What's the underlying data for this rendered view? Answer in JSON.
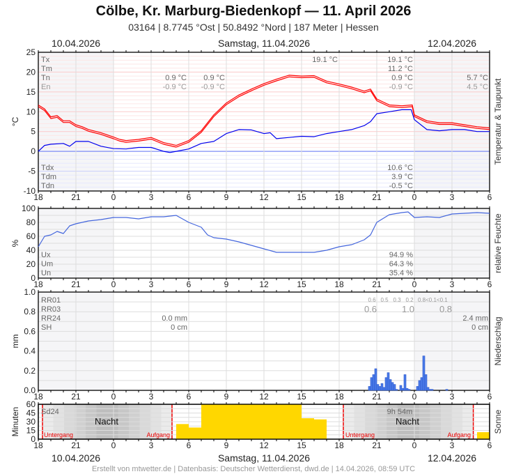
{
  "header": {
    "title": "Cölbe, Kr. Marburg-Biedenkopf  —  11. April 2026",
    "subtitle": "03164  |  8.7745 °Ost  |  50.8492 °Nord  |  187 Meter  |  Hessen"
  },
  "dates": {
    "left": "10.04.2026",
    "center": "Samstag, 11.04.2026",
    "right": "12.04.2026"
  },
  "footer": "Erstellt von mtwetter.de | Datenbasis: Deutscher Wetterdienst, dwd.de | 14.04.2026, 08:59 UTC",
  "x_tick_labels": [
    "18",
    "21",
    "0",
    "3",
    "6",
    "9",
    "12",
    "15",
    "18",
    "21",
    "0",
    "3",
    "6"
  ],
  "colors": {
    "temperature": "#ff0000",
    "dewpoint": "#0000ee",
    "humidity": "#4466dd",
    "precipitation": "#4a7be8",
    "sunshine": "#ffd700",
    "sun_event": "#ee0000"
  },
  "chart_data": [
    {
      "type": "line",
      "ylabel": "°C",
      "right_label": "Temperatur & Taupunkt",
      "ylim": [
        -10,
        25
      ],
      "y_ticks": [
        "25",
        "20",
        "15",
        "10",
        "5",
        "0",
        "-5",
        "-10"
      ],
      "xlim": [
        "2026-04-10T18:00",
        "2026-04-12T06:00"
      ],
      "grid": true,
      "series": [
        {
          "key": "temperature",
          "points": [
            [
              "2026-04-10T18:00",
              11.5
            ],
            [
              "2026-04-10T18:30",
              10.5
            ],
            [
              "2026-04-10T19:00",
              8.5
            ],
            [
              "2026-04-10T19:30",
              8.8
            ],
            [
              "2026-04-10T20:00",
              7.5
            ],
            [
              "2026-04-10T20:30",
              7.5
            ],
            [
              "2026-04-10T21:00",
              6.5
            ],
            [
              "2026-04-10T21:30",
              6
            ],
            [
              "2026-04-10T22:00",
              5.3
            ],
            [
              "2026-04-10T23:00",
              4.5
            ],
            [
              "2026-04-11T00:00",
              3.4
            ],
            [
              "2026-04-11T00:30",
              2.8
            ],
            [
              "2026-04-11T01:00",
              2.5
            ],
            [
              "2026-04-11T02:00",
              2.8
            ],
            [
              "2026-04-11T03:00",
              3.3
            ],
            [
              "2026-04-11T04:00",
              2
            ],
            [
              "2026-04-11T05:00",
              1.3
            ],
            [
              "2026-04-11T06:00",
              2.5
            ],
            [
              "2026-04-11T07:00",
              5
            ],
            [
              "2026-04-11T08:00",
              9
            ],
            [
              "2026-04-11T09:00",
              12
            ],
            [
              "2026-04-11T10:00",
              14
            ],
            [
              "2026-04-11T11:00",
              15.5
            ],
            [
              "2026-04-11T12:00",
              16.9
            ],
            [
              "2026-04-11T13:00",
              18
            ],
            [
              "2026-04-11T14:00",
              19
            ],
            [
              "2026-04-11T15:00",
              18.8
            ],
            [
              "2026-04-11T16:00",
              18.9
            ],
            [
              "2026-04-11T17:00",
              17.5
            ],
            [
              "2026-04-11T18:00",
              16.8
            ],
            [
              "2026-04-11T19:00",
              16
            ],
            [
              "2026-04-11T20:00",
              15
            ],
            [
              "2026-04-11T20:30",
              15.5
            ],
            [
              "2026-04-11T21:00",
              13
            ],
            [
              "2026-04-11T22:00",
              11.5
            ],
            [
              "2026-04-11T23:00",
              11.3
            ],
            [
              "2026-04-11T23:50",
              11.5
            ],
            [
              "2026-04-12T00:00",
              9
            ],
            [
              "2026-04-12T01:00",
              7.5
            ],
            [
              "2026-04-12T02:00",
              7
            ],
            [
              "2026-04-12T03:00",
              7
            ],
            [
              "2026-04-12T04:00",
              6.5
            ],
            [
              "2026-04-12T05:00",
              6
            ],
            [
              "2026-04-12T06:00",
              5.7
            ]
          ]
        },
        {
          "key": "dewpoint",
          "points": [
            [
              "2026-04-10T18:00",
              0
            ],
            [
              "2026-04-10T18:30",
              1.5
            ],
            [
              "2026-04-10T19:00",
              1.8
            ],
            [
              "2026-04-10T20:00",
              2
            ],
            [
              "2026-04-10T20:30",
              1.3
            ],
            [
              "2026-04-10T21:00",
              2.5
            ],
            [
              "2026-04-10T22:00",
              2.5
            ],
            [
              "2026-04-10T23:00",
              1.3
            ],
            [
              "2026-04-11T00:00",
              0.7
            ],
            [
              "2026-04-11T01:00",
              0.6
            ],
            [
              "2026-04-11T02:00",
              1
            ],
            [
              "2026-04-11T03:00",
              1
            ],
            [
              "2026-04-11T04:00",
              0
            ],
            [
              "2026-04-11T04:30",
              -0.3
            ],
            [
              "2026-04-11T05:00",
              0
            ],
            [
              "2026-04-11T06:00",
              0.6
            ],
            [
              "2026-04-11T07:00",
              2
            ],
            [
              "2026-04-11T08:00",
              2.5
            ],
            [
              "2026-04-11T09:00",
              4.5
            ],
            [
              "2026-04-11T10:00",
              5.5
            ],
            [
              "2026-04-11T11:00",
              5.4
            ],
            [
              "2026-04-11T12:00",
              4.5
            ],
            [
              "2026-04-11T12:30",
              4.7
            ],
            [
              "2026-04-11T13:00",
              3.2
            ],
            [
              "2026-04-11T14:00",
              3.5
            ],
            [
              "2026-04-11T15:00",
              3.8
            ],
            [
              "2026-04-11T16:00",
              3.7
            ],
            [
              "2026-04-11T17:00",
              4.5
            ],
            [
              "2026-04-11T18:00",
              5
            ],
            [
              "2026-04-11T19:00",
              5.5
            ],
            [
              "2026-04-11T20:00",
              6.5
            ],
            [
              "2026-04-11T20:30",
              7.5
            ],
            [
              "2026-04-11T21:00",
              9.5
            ],
            [
              "2026-04-11T22:00",
              10
            ],
            [
              "2026-04-11T23:00",
              10.5
            ],
            [
              "2026-04-11T23:45",
              10.5
            ],
            [
              "2026-04-12T00:00",
              8
            ],
            [
              "2026-04-12T01:00",
              5.5
            ],
            [
              "2026-04-12T02:00",
              5.2
            ],
            [
              "2026-04-12T03:00",
              5.5
            ],
            [
              "2026-04-12T04:00",
              5.5
            ],
            [
              "2026-04-12T05:00",
              5
            ],
            [
              "2026-04-12T06:00",
              5
            ]
          ]
        }
      ],
      "stats_labels_top": [
        "Tx",
        "Tm",
        "Tn",
        "En"
      ],
      "stats_labels_bottom": [
        "Tdx",
        "Tdm",
        "Tdn"
      ],
      "stats": {
        "day0_tn": "0.9 °C",
        "day0_en": "-0.9 °C",
        "day1_tn": "0.9 °C",
        "day1_en": "-0.9 °C",
        "tx_marker": "19.1 °C",
        "day_tx": "19.1 °C",
        "day_tm": "11.2 °C",
        "day_tn": "0.9 °C",
        "day_en": "-0.9 °C",
        "next_tn": "5.7 °C",
        "next_en": "4.5 °C",
        "day_tdx": "10.6 °C",
        "day_tdm": "3.9 °C",
        "day_tdn": "-0.5 °C"
      }
    },
    {
      "type": "line",
      "ylabel": "%",
      "right_label": "relative Feuchte",
      "ylim": [
        0,
        100
      ],
      "y_ticks": [
        "100",
        "80",
        "60",
        "40",
        "20",
        "0"
      ],
      "series": [
        {
          "key": "humidity",
          "points": [
            [
              "2026-04-10T18:00",
              45
            ],
            [
              "2026-04-10T18:30",
              60
            ],
            [
              "2026-04-10T19:00",
              62
            ],
            [
              "2026-04-10T19:30",
              67
            ],
            [
              "2026-04-10T20:00",
              64
            ],
            [
              "2026-04-10T20:30",
              75
            ],
            [
              "2026-04-10T21:00",
              78
            ],
            [
              "2026-04-10T22:00",
              82
            ],
            [
              "2026-04-10T23:00",
              84
            ],
            [
              "2026-04-11T00:00",
              87
            ],
            [
              "2026-04-11T01:00",
              87
            ],
            [
              "2026-04-11T02:00",
              85
            ],
            [
              "2026-04-11T03:00",
              88
            ],
            [
              "2026-04-11T04:00",
              88
            ],
            [
              "2026-04-11T05:00",
              90
            ],
            [
              "2026-04-11T06:00",
              80
            ],
            [
              "2026-04-11T07:00",
              73
            ],
            [
              "2026-04-11T07:30",
              62
            ],
            [
              "2026-04-11T08:00",
              58
            ],
            [
              "2026-04-11T09:00",
              56
            ],
            [
              "2026-04-11T10:00",
              52
            ],
            [
              "2026-04-11T11:00",
              47
            ],
            [
              "2026-04-11T12:00",
              42
            ],
            [
              "2026-04-11T13:00",
              37
            ],
            [
              "2026-04-11T14:00",
              37
            ],
            [
              "2026-04-11T15:00",
              37
            ],
            [
              "2026-04-11T16:00",
              37
            ],
            [
              "2026-04-11T17:00",
              40
            ],
            [
              "2026-04-11T18:00",
              45
            ],
            [
              "2026-04-11T19:00",
              48
            ],
            [
              "2026-04-11T20:00",
              55
            ],
            [
              "2026-04-11T20:30",
              62
            ],
            [
              "2026-04-11T21:00",
              80
            ],
            [
              "2026-04-11T22:00",
              91
            ],
            [
              "2026-04-11T23:00",
              94
            ],
            [
              "2026-04-11T23:30",
              95
            ],
            [
              "2026-04-12T00:00",
              87
            ],
            [
              "2026-04-12T01:00",
              88
            ],
            [
              "2026-04-12T02:00",
              87
            ],
            [
              "2026-04-12T03:00",
              92
            ],
            [
              "2026-04-12T04:00",
              93
            ],
            [
              "2026-04-12T05:00",
              94
            ],
            [
              "2026-04-12T06:00",
              93
            ]
          ]
        }
      ],
      "stats_labels": [
        "Ux",
        "Um",
        "Un"
      ],
      "stats": {
        "ux": "94.9 %",
        "um": "64.3 %",
        "un": "35.4 %"
      }
    },
    {
      "type": "bar",
      "ylabel": "mm",
      "right_label": "Niederschlag",
      "ylim": [
        0,
        1.0
      ],
      "y_ticks": [
        "1.0",
        "0.8",
        "0.6",
        "0.4",
        "0.2",
        "0.0"
      ],
      "bar_minutes": 10,
      "values": [
        [
          "2026-04-11T20:20",
          0.04
        ],
        [
          "2026-04-11T20:30",
          0.13
        ],
        [
          "2026-04-11T20:40",
          0.16
        ],
        [
          "2026-04-11T20:50",
          0.22
        ],
        [
          "2026-04-11T21:00",
          0.06
        ],
        [
          "2026-04-11T21:10",
          0.04
        ],
        [
          "2026-04-11T21:20",
          0.07
        ],
        [
          "2026-04-11T21:30",
          0.03
        ],
        [
          "2026-04-11T21:40",
          0.13
        ],
        [
          "2026-04-11T21:50",
          0.18
        ],
        [
          "2026-04-11T22:00",
          0.11
        ],
        [
          "2026-04-11T22:10",
          0.08
        ],
        [
          "2026-04-11T22:20",
          0.06
        ],
        [
          "2026-04-11T22:30",
          0.01
        ],
        [
          "2026-04-11T22:50",
          0.05
        ],
        [
          "2026-04-11T23:00",
          0.02
        ],
        [
          "2026-04-11T23:10",
          0.16
        ],
        [
          "2026-04-11T23:20",
          0.02
        ],
        [
          "2026-04-11T23:30",
          0.01
        ],
        [
          "2026-04-12T00:10",
          0.04
        ],
        [
          "2026-04-12T00:20",
          0.1
        ],
        [
          "2026-04-12T00:30",
          0.13
        ],
        [
          "2026-04-12T00:40",
          0.35
        ],
        [
          "2026-04-12T00:50",
          0.16
        ],
        [
          "2026-04-12T01:00",
          0.03
        ],
        [
          "2026-04-12T01:10",
          0.01
        ],
        [
          "2026-04-12T01:20",
          0.01
        ],
        [
          "2026-04-12T02:30",
          0.01
        ]
      ],
      "stats_labels": [
        "RR01",
        "RR03",
        "RR24",
        "SH"
      ],
      "stats": {
        "day_rr24": "0.0 mm",
        "day_sh": "0 cm",
        "next_rr24": "2.4 mm",
        "next_sh": "0 cm"
      },
      "rr01": [
        "0.6",
        "0.5",
        "0.3",
        "0.2",
        "0.8<0.1<0.1"
      ],
      "rr03": [
        "0.6",
        "1.0",
        "0.8"
      ]
    },
    {
      "type": "bar",
      "ylabel": "Minuten",
      "right_label": "Sonne",
      "ylim": [
        0,
        60
      ],
      "y_ticks": [
        "60",
        "45",
        "30",
        "15",
        "0"
      ],
      "bar_minutes": 60,
      "values": [
        [
          "2026-04-11T05:00",
          26
        ],
        [
          "2026-04-11T06:00",
          20
        ],
        [
          "2026-04-11T07:00",
          60
        ],
        [
          "2026-04-11T08:00",
          60
        ],
        [
          "2026-04-11T09:00",
          60
        ],
        [
          "2026-04-11T10:00",
          60
        ],
        [
          "2026-04-11T11:00",
          60
        ],
        [
          "2026-04-11T12:00",
          60
        ],
        [
          "2026-04-11T13:00",
          60
        ],
        [
          "2026-04-11T14:00",
          60
        ],
        [
          "2026-04-11T15:00",
          36
        ],
        [
          "2026-04-11T16:00",
          34
        ],
        [
          "2026-04-12T05:00",
          12
        ]
      ],
      "sd24_label": "Sd24",
      "sd24_value": "9h 54m",
      "night_label": "Nacht",
      "sunset_label": "Untergang",
      "sunrise_label": "Aufgang",
      "sun_events": {
        "sunset1": "2026-04-10T18:20",
        "sunrise1": "2026-04-11T04:40",
        "sunset2": "2026-04-11T18:20",
        "sunrise2": "2026-04-12T04:42"
      }
    }
  ]
}
